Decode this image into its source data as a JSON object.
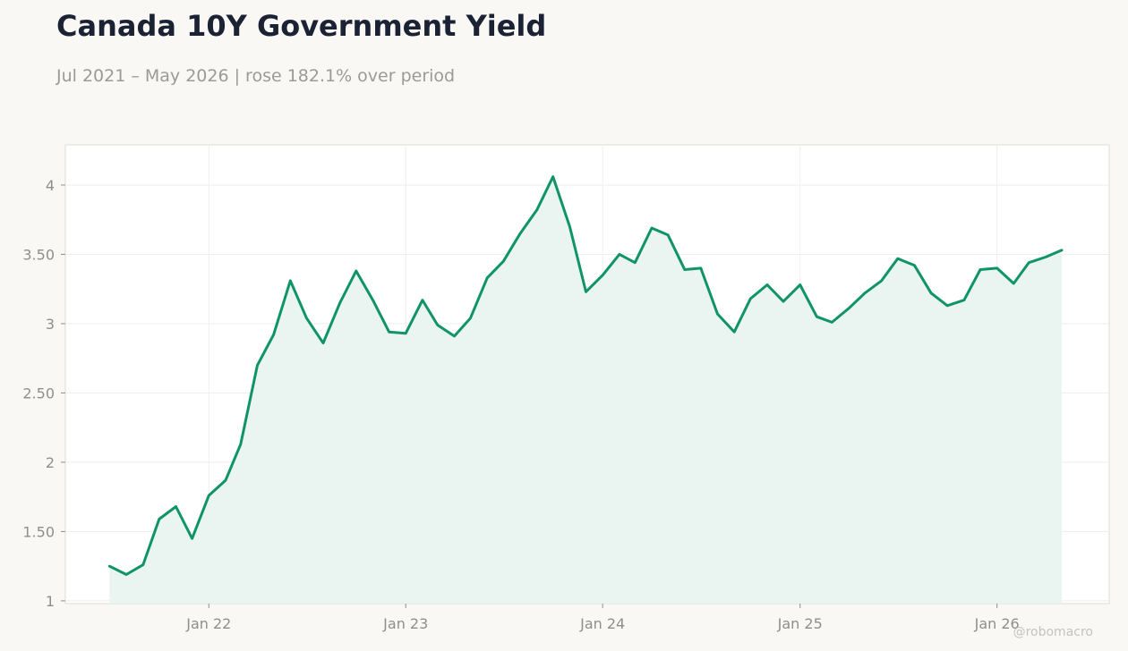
{
  "header": {
    "title": "Canada 10Y Government Yield",
    "subtitle": "Jul 2021 – May 2026 | rose 182.1% over period"
  },
  "watermark": "@robomacro",
  "colors": {
    "line": "#0f9467",
    "fill": "#e8f4ef",
    "background": "#f9f8f5",
    "plot_background": "#ffffff",
    "grid": "#eeeeec",
    "title": "#1b2234",
    "muted_text": "#9a9a96"
  },
  "chart_data": {
    "type": "area",
    "title": "Canada 10Y Government Yield",
    "xlabel": "",
    "ylabel": "",
    "x_ticks": [
      "Jan 22",
      "Jan 23",
      "Jan 24",
      "Jan 25",
      "Jan 26"
    ],
    "y_ticks": [
      "1",
      "1.50",
      "2",
      "2.50",
      "3",
      "3.50",
      "4"
    ],
    "ylim": [
      0.98,
      4.29
    ],
    "xlim": [
      "2021-04-10",
      "2026-07-28"
    ],
    "grid": true,
    "legend": "none",
    "x": [
      "2021-07-01",
      "2021-08-01",
      "2021-09-01",
      "2021-10-01",
      "2021-11-01",
      "2021-12-01",
      "2022-01-01",
      "2022-02-01",
      "2022-03-01",
      "2022-04-01",
      "2022-05-01",
      "2022-06-01",
      "2022-07-01",
      "2022-08-01",
      "2022-09-01",
      "2022-10-01",
      "2022-11-01",
      "2022-12-01",
      "2023-01-01",
      "2023-02-01",
      "2023-03-01",
      "2023-04-01",
      "2023-05-01",
      "2023-06-01",
      "2023-07-01",
      "2023-08-01",
      "2023-09-01",
      "2023-10-01",
      "2023-11-01",
      "2023-12-01",
      "2024-01-01",
      "2024-02-01",
      "2024-03-01",
      "2024-04-01",
      "2024-05-01",
      "2024-06-01",
      "2024-07-01",
      "2024-08-01",
      "2024-09-01",
      "2024-10-01",
      "2024-11-01",
      "2024-12-01",
      "2025-01-01",
      "2025-02-01",
      "2025-03-01",
      "2025-04-01",
      "2025-05-01",
      "2025-06-01",
      "2025-07-01",
      "2025-08-01",
      "2025-09-01",
      "2025-10-01",
      "2025-11-01",
      "2025-12-01",
      "2026-01-01",
      "2026-02-01",
      "2026-03-01",
      "2026-04-01",
      "2026-05-01"
    ],
    "values": [
      1.25,
      1.19,
      1.26,
      1.59,
      1.68,
      1.45,
      1.76,
      1.87,
      2.13,
      2.7,
      2.92,
      3.31,
      3.04,
      2.86,
      3.15,
      3.38,
      3.17,
      2.94,
      2.93,
      3.17,
      2.99,
      2.91,
      3.04,
      3.33,
      3.45,
      3.65,
      3.82,
      4.06,
      3.7,
      3.23,
      3.35,
      3.5,
      3.44,
      3.69,
      3.64,
      3.39,
      3.4,
      3.07,
      2.94,
      3.18,
      3.28,
      3.16,
      3.28,
      3.05,
      3.01,
      3.11,
      3.22,
      3.31,
      3.47,
      3.42,
      3.22,
      3.13,
      3.17,
      3.39,
      3.4,
      3.29,
      3.44,
      3.48,
      3.53
    ]
  }
}
